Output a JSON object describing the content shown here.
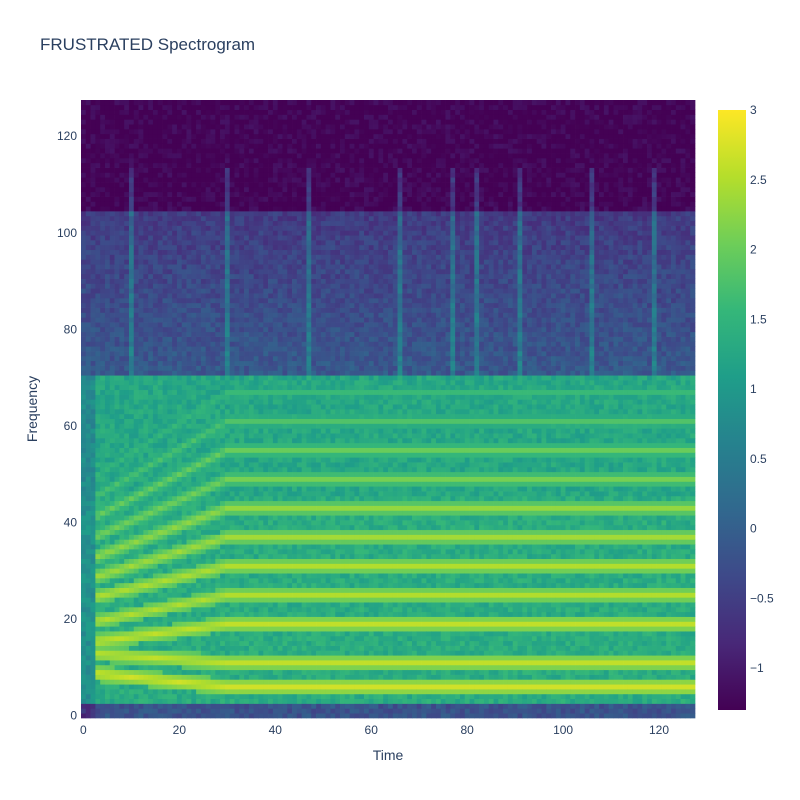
{
  "chart_data": {
    "type": "heatmap",
    "title": "FRUSTRATED Spectrogram",
    "xlabel": "Time",
    "ylabel": "Frequency",
    "x_range": [
      0,
      127
    ],
    "y_range": [
      0,
      127
    ],
    "xticks": [
      0,
      20,
      40,
      60,
      80,
      100,
      120
    ],
    "yticks": [
      0,
      20,
      40,
      60,
      80,
      100,
      120
    ],
    "colorscale": "Viridis",
    "zrange": [
      -1.3,
      3
    ],
    "colorbar_ticks": [
      3,
      2.5,
      2,
      1.5,
      1,
      0.5,
      0,
      -0.5,
      -1
    ],
    "colorbar_tick_labels": [
      "3",
      "2.5",
      "2",
      "1.5",
      "1",
      "0.5",
      "0",
      "−0.5",
      "−1"
    ],
    "harmonics": [
      {
        "start": 9,
        "end": 6,
        "value": 2.7
      },
      {
        "start": 13,
        "end": 11,
        "value": 2.6
      },
      {
        "start": 15,
        "end": 19,
        "value": 2.6
      },
      {
        "start": 19,
        "end": 25,
        "value": 2.5
      },
      {
        "start": 24,
        "end": 31,
        "value": 2.5
      },
      {
        "start": 28,
        "end": 37,
        "value": 2.4
      },
      {
        "start": 32,
        "end": 43,
        "value": 2.3
      },
      {
        "start": 36,
        "end": 49,
        "value": 2.1
      },
      {
        "start": 40,
        "end": 55,
        "value": 2.0
      },
      {
        "start": 44,
        "end": 61,
        "value": 1.8
      },
      {
        "start": 48,
        "end": 67,
        "value": 1.6
      }
    ],
    "vertical_streaks": [
      10,
      30,
      47,
      66,
      77,
      82,
      91,
      106,
      119
    ]
  }
}
